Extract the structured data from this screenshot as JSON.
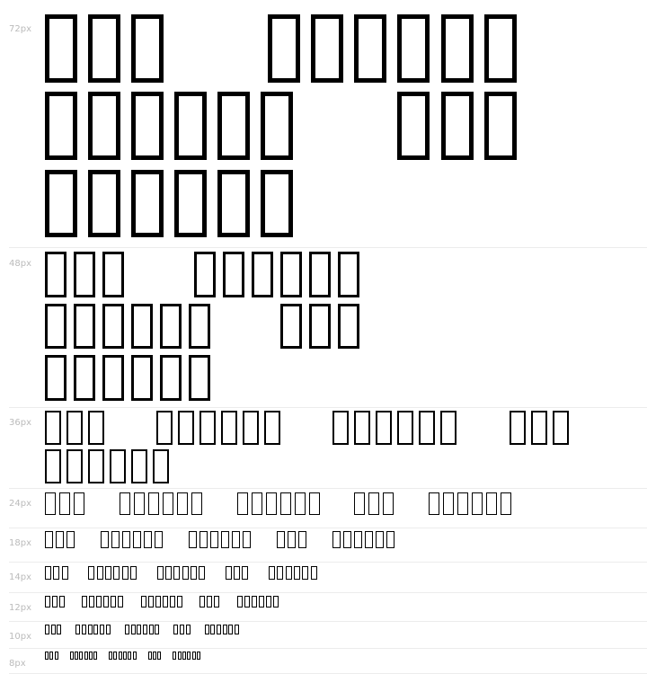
{
  "sample_text": "□□□ □□□□□□ □□□□□□ □□□ □□□□□□",
  "rows": [
    {
      "label": "72px",
      "size": 72
    },
    {
      "label": "48px",
      "size": 48
    },
    {
      "label": "36px",
      "size": 36
    },
    {
      "label": "24px",
      "size": 24
    },
    {
      "label": "18px",
      "size": 18
    },
    {
      "label": "14px",
      "size": 14
    },
    {
      "label": "12px",
      "size": 12
    },
    {
      "label": "10px",
      "size": 10
    },
    {
      "label": "8px",
      "size": 8
    }
  ]
}
